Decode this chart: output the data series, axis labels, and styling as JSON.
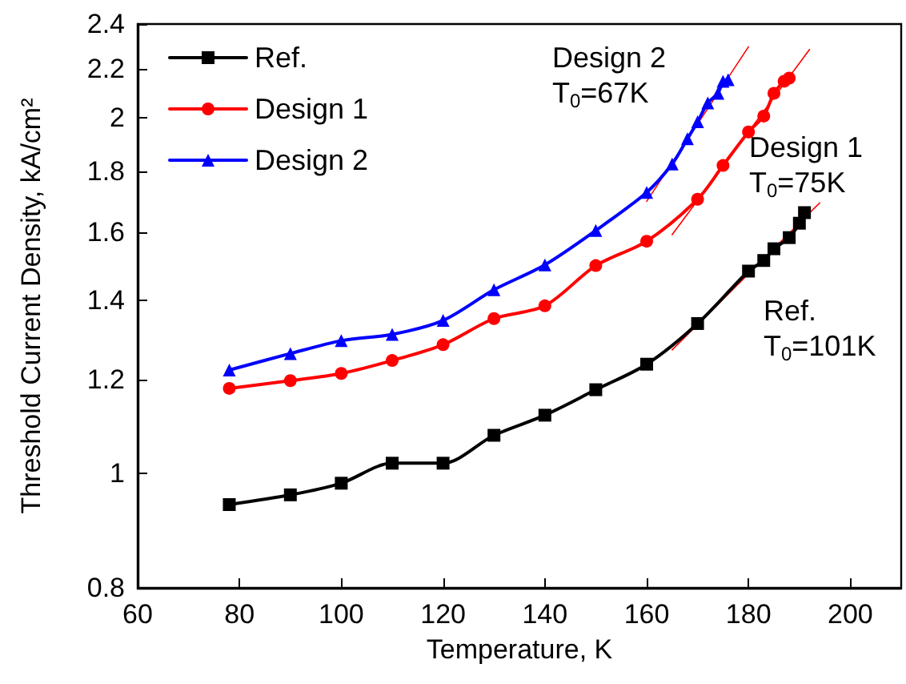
{
  "chart_data": {
    "type": "line",
    "xlabel": "Temperature, K",
    "ylabel": "Threshold Current Density, kA/cm²",
    "log": "y",
    "xlim": [
      60,
      210
    ],
    "xticks": [
      60,
      80,
      100,
      120,
      140,
      160,
      180,
      200
    ],
    "ylim": [
      0.8,
      2.4
    ],
    "yticks": [
      0.8,
      1,
      1.2,
      1.4,
      1.6,
      1.8,
      2,
      2.2,
      2.4
    ],
    "grid": false,
    "legend": "top left",
    "line_style": "solid",
    "series": [
      {
        "name": "Ref.",
        "color": "#000000",
        "marker": "square",
        "x": [
          78,
          90,
          100,
          110,
          120,
          130,
          140,
          150,
          160,
          170,
          180,
          183,
          185,
          188,
          190,
          191
        ],
        "values": [
          0.941,
          0.959,
          0.981,
          1.02,
          1.02,
          1.077,
          1.12,
          1.177,
          1.237,
          1.339,
          1.483,
          1.514,
          1.549,
          1.583,
          1.628,
          1.662
        ]
      },
      {
        "name": "Design 1",
        "color": "#ff0000",
        "marker": "circle",
        "x": [
          78,
          90,
          100,
          110,
          120,
          130,
          140,
          150,
          160,
          170,
          175,
          180,
          183,
          185,
          187,
          188
        ],
        "values": [
          1.18,
          1.198,
          1.215,
          1.246,
          1.285,
          1.352,
          1.386,
          1.499,
          1.572,
          1.706,
          1.822,
          1.945,
          2.006,
          2.097,
          2.147,
          2.16
        ]
      },
      {
        "name": "Design 2",
        "color": "#0000ff",
        "marker": "triangle",
        "x": [
          78,
          90,
          100,
          110,
          120,
          130,
          140,
          150,
          160,
          165,
          168,
          170,
          172,
          174,
          175,
          176
        ],
        "values": [
          1.223,
          1.263,
          1.295,
          1.311,
          1.347,
          1.43,
          1.501,
          1.605,
          1.729,
          1.827,
          1.919,
          1.984,
          2.058,
          2.097,
          2.147,
          2.153
        ]
      },
      {
        "color": "#ff0000",
        "marker": "none",
        "x": [
          165,
          194
        ],
        "values": [
          1.272,
          1.694
        ]
      },
      {
        "color": "#ff0000",
        "marker": "none",
        "x": [
          165,
          192
        ],
        "values": [
          1.592,
          2.284
        ]
      },
      {
        "color": "#ff0000",
        "marker": "none",
        "x": [
          160,
          180
        ],
        "values": [
          1.699,
          2.296
        ]
      }
    ],
    "annotations": [
      "Design 2\nT$_{0}$=67K",
      "Design 1\nT$_{0}$=75K",
      "Ref.\nT$_{0}$=101K"
    ]
  }
}
